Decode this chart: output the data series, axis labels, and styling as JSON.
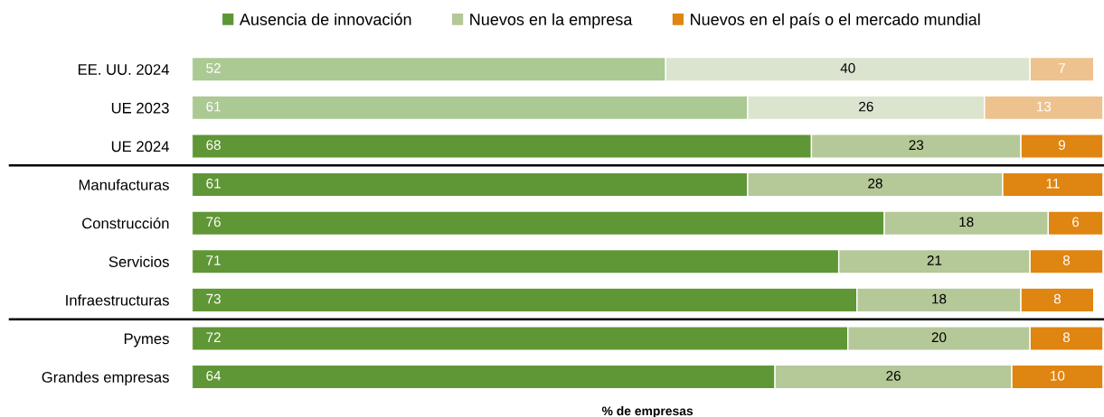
{
  "chart_data": {
    "type": "bar",
    "orientation": "horizontal",
    "stacked": true,
    "xlabel": "% de empresas",
    "categories": [
      "EE. UU. 2024",
      "UE 2023",
      "UE 2024",
      "Manufacturas",
      "Construcción",
      "Servicios",
      "Infraestructuras",
      "Pymes",
      "Grandes empresas"
    ],
    "series": [
      {
        "name": "Ausencia de innovación",
        "color": "#5f9636",
        "colors": [
          "#abc993",
          "#abc993",
          "#5f9636",
          "#5f9636",
          "#5f9636",
          "#5f9636",
          "#5f9636",
          "#5f9636",
          "#5f9636"
        ],
        "values": [
          52,
          61,
          68,
          61,
          76,
          71,
          73,
          72,
          64
        ]
      },
      {
        "name": "Nuevos en la empresa",
        "color": "#b5c898",
        "colors": [
          "#dbe4cf",
          "#dbe4cf",
          "#b5c898",
          "#b5c898",
          "#b5c898",
          "#b5c898",
          "#b5c898",
          "#b5c898",
          "#b5c898"
        ],
        "values": [
          40,
          26,
          23,
          28,
          18,
          21,
          18,
          20,
          26
        ]
      },
      {
        "name": "Nuevos en el país o el mercado mundial",
        "color": "#df8511",
        "colors": [
          "#eec28e",
          "#eec28e",
          "#df8511",
          "#df8511",
          "#df8511",
          "#df8511",
          "#df8511",
          "#df8511",
          "#df8511"
        ],
        "values": [
          7,
          13,
          9,
          11,
          6,
          8,
          8,
          8,
          10
        ]
      }
    ],
    "data_labels": true,
    "legend": "top",
    "tick_labels": "y",
    "grid": false
  }
}
